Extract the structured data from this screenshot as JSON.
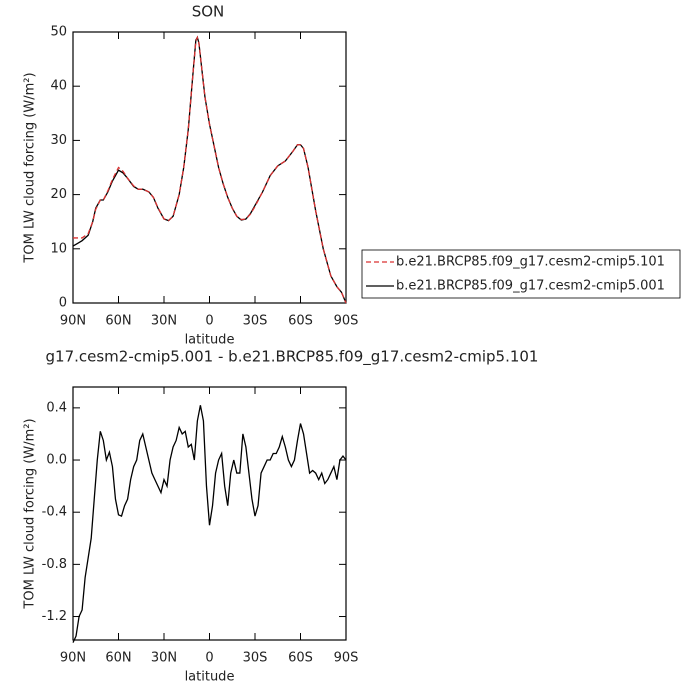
{
  "chart_data": [
    {
      "type": "line",
      "title": "SON",
      "xlabel": "latitude",
      "ylabel": "TOM LW cloud forcing (W/m²)",
      "x": [
        90,
        87,
        84,
        80,
        77,
        75,
        72,
        70,
        67,
        64,
        60,
        57,
        54,
        50,
        47,
        44,
        40,
        37,
        34,
        30,
        27,
        24,
        20,
        17,
        14,
        11,
        9,
        8,
        7,
        5,
        3,
        0,
        -3,
        -6,
        -9,
        -12,
        -15,
        -18,
        -21,
        -24,
        -27,
        -30,
        -35,
        -40,
        -45,
        -50,
        -55,
        -58,
        -60,
        -62,
        -65,
        -70,
        -75,
        -80,
        -84,
        -87,
        -90
      ],
      "series": [
        {
          "name": "b.e21.BRCP85.f09_g17.cesm2-cmip5.101",
          "color": "#d93030",
          "linestyle": "dashed",
          "values": [
            12,
            12,
            12,
            12.8,
            15,
            17.3,
            19,
            19,
            20.7,
            22.8,
            25,
            24.3,
            23,
            21.6,
            21,
            21,
            20.5,
            19.5,
            17.6,
            15.5,
            15.2,
            16,
            20,
            25,
            32,
            42,
            48.3,
            49,
            48,
            43,
            38,
            33,
            29,
            25,
            22,
            19.5,
            17.5,
            16,
            15.4,
            15.5,
            16.4,
            17.8,
            20.5,
            23.5,
            25.3,
            26.2,
            28,
            29.2,
            29.2,
            28.5,
            25,
            17,
            10,
            5,
            3,
            2,
            0
          ]
        },
        {
          "name": "b.e21.BRCP85.f09_g17.cesm2-cmip5.001",
          "color": "#000000",
          "linestyle": "solid",
          "values": [
            10.5,
            11,
            11.5,
            12.5,
            15,
            17.5,
            19,
            19,
            20.5,
            22.5,
            24.5,
            24,
            23,
            21.5,
            21,
            21,
            20.5,
            19.5,
            17.5,
            15.5,
            15.2,
            16,
            20,
            25,
            32,
            42,
            48.5,
            49,
            48,
            43,
            38,
            33,
            29,
            25,
            22,
            19.5,
            17.5,
            16,
            15.3,
            15.5,
            16.5,
            18,
            20.5,
            23.5,
            25.3,
            26.2,
            28,
            29.2,
            29.2,
            28.5,
            25,
            17,
            10,
            5,
            3,
            2,
            0
          ]
        }
      ],
      "xlim": [
        90,
        -90
      ],
      "xticks": [
        {
          "value": 90,
          "label": "90N"
        },
        {
          "value": 60,
          "label": "60N"
        },
        {
          "value": 30,
          "label": "30N"
        },
        0,
        {
          "value": -30,
          "label": "30S"
        },
        {
          "value": -60,
          "label": "60S"
        },
        {
          "value": -90,
          "label": "90S"
        }
      ],
      "ylim": [
        0,
        50
      ],
      "yticks": [
        0,
        10,
        20,
        30,
        40,
        50
      ],
      "legend": "right"
    },
    {
      "type": "line",
      "title": "g17.cesm2-cmip5.001 - b.e21.BRCP85.f09_g17.cesm2-cmip5.101",
      "xlabel": "latitude",
      "ylabel": "TOM LW cloud forcing (W/m²)",
      "x": [
        90,
        88,
        86,
        84,
        82,
        80,
        78,
        76,
        74,
        72,
        70,
        68,
        66,
        64,
        62,
        60,
        58,
        56,
        54,
        52,
        50,
        48,
        46,
        44,
        42,
        40,
        38,
        36,
        34,
        32,
        30,
        28,
        26,
        24,
        22,
        20,
        18,
        16,
        14,
        12,
        10,
        8,
        6,
        4,
        2,
        0,
        -2,
        -4,
        -6,
        -8,
        -10,
        -12,
        -14,
        -16,
        -18,
        -20,
        -22,
        -24,
        -26,
        -28,
        -30,
        -32,
        -34,
        -36,
        -38,
        -40,
        -42,
        -44,
        -46,
        -48,
        -50,
        -52,
        -54,
        -56,
        -58,
        -60,
        -62,
        -64,
        -66,
        -68,
        -70,
        -72,
        -74,
        -76,
        -78,
        -80,
        -82,
        -84,
        -86,
        -88,
        -90
      ],
      "series": [
        {
          "name": null,
          "color": "#000000",
          "linestyle": "solid",
          "values": [
            -1.4,
            -1.35,
            -1.2,
            -1.15,
            -0.9,
            -0.75,
            -0.6,
            -0.3,
            0,
            0.22,
            0.15,
            0,
            0.06,
            -0.05,
            -0.3,
            -0.42,
            -0.43,
            -0.35,
            -0.3,
            -0.15,
            -0.05,
            0,
            0.15,
            0.2,
            0.1,
            0,
            -0.1,
            -0.15,
            -0.2,
            -0.25,
            -0.15,
            -0.2,
            0,
            0.1,
            0.15,
            0.25,
            0.2,
            0.22,
            0.1,
            0.12,
            0,
            0.3,
            0.42,
            0.3,
            -0.2,
            -0.5,
            -0.35,
            -0.1,
            0,
            0.05,
            -0.2,
            -0.35,
            -0.1,
            0,
            -0.1,
            -0.1,
            0.2,
            0.1,
            -0.1,
            -0.3,
            -0.43,
            -0.35,
            -0.1,
            -0.05,
            0,
            0,
            0.05,
            0.05,
            0.1,
            0.18,
            0.1,
            0,
            -0.05,
            0,
            0.15,
            0.28,
            0.2,
            0.05,
            -0.1,
            -0.08,
            -0.1,
            -0.15,
            -0.1,
            -0.18,
            -0.15,
            -0.1,
            -0.05,
            -0.15,
            0,
            0.03,
            0
          ]
        }
      ],
      "xlim": [
        90,
        -90
      ],
      "xticks": [
        {
          "value": 90,
          "label": "90N"
        },
        {
          "value": 60,
          "label": "60N"
        },
        {
          "value": 30,
          "label": "30N"
        },
        0,
        {
          "value": -30,
          "label": "30S"
        },
        {
          "value": -60,
          "label": "60S"
        },
        {
          "value": -90,
          "label": "90S"
        }
      ],
      "ylim": [
        -1.38,
        0.56
      ],
      "yticks": [
        0.4,
        {
          "value": 0,
          "label": "0.0"
        },
        -0.4,
        -0.8,
        -1.2
      ]
    }
  ]
}
